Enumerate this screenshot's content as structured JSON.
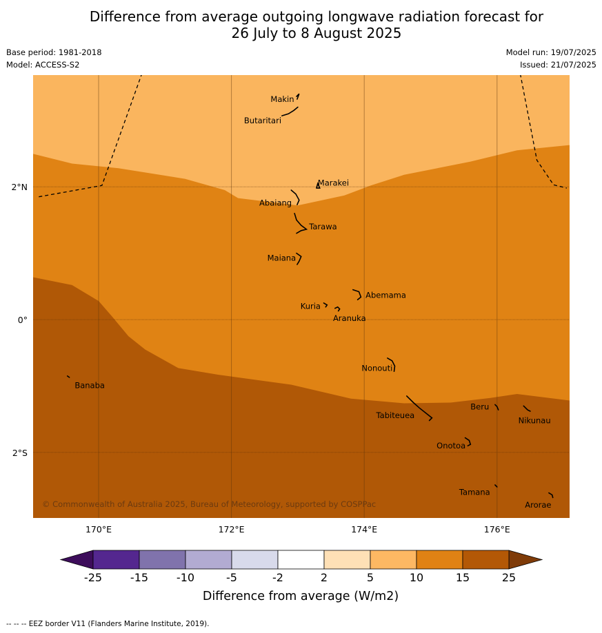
{
  "header": {
    "title_line1": "Difference from average outgoing longwave radiation forecast for",
    "title_line2": "26 July to 8 August 2025",
    "base_period": "Base period: 1981-2018",
    "model": "Model: ACCESS-S2",
    "model_run": "Model run: 19/07/2025",
    "issued": "Issued: 21/07/2025"
  },
  "map": {
    "extent": {
      "lon_min": 169.0,
      "lon_max": 177.1,
      "lat_min": -3.0,
      "lat_max": 3.7
    },
    "gridlines_lon": [
      170,
      172,
      174,
      176
    ],
    "gridlines_lat": [
      2,
      0,
      -2
    ],
    "lon_labels": [
      "170°E",
      "172°E",
      "174°E",
      "176°E"
    ],
    "lat_labels": [
      "2°N",
      "0°",
      "2°S"
    ],
    "fill_colors": {
      "band_5_10": "#fab55e",
      "band_10_15": "#e08314",
      "band_15_25": "#b05806"
    },
    "contour_10": [
      [
        169.0,
        2.5
      ],
      [
        169.6,
        2.35
      ],
      [
        170.3,
        2.28
      ],
      [
        171.3,
        2.12
      ],
      [
        171.9,
        1.95
      ],
      [
        172.1,
        1.83
      ],
      [
        173.0,
        1.72
      ],
      [
        173.7,
        1.87
      ],
      [
        174.1,
        2.02
      ],
      [
        174.6,
        2.18
      ],
      [
        175.6,
        2.38
      ],
      [
        176.3,
        2.55
      ],
      [
        177.1,
        2.63
      ]
    ],
    "contour_15": [
      [
        169.0,
        0.64
      ],
      [
        169.6,
        0.52
      ],
      [
        170.0,
        0.28
      ],
      [
        170.2,
        0.05
      ],
      [
        170.45,
        -0.25
      ],
      [
        170.7,
        -0.45
      ],
      [
        171.2,
        -0.73
      ],
      [
        171.8,
        -0.83
      ],
      [
        172.9,
        -0.98
      ],
      [
        173.8,
        -1.19
      ],
      [
        174.6,
        -1.26
      ],
      [
        175.3,
        -1.25
      ],
      [
        175.9,
        -1.18
      ],
      [
        176.3,
        -1.12
      ],
      [
        177.1,
        -1.22
      ]
    ],
    "eez_west": [
      [
        169.1,
        1.85
      ],
      [
        170.05,
        2.02
      ],
      [
        170.65,
        3.7
      ]
    ],
    "eez_east": [
      [
        176.35,
        3.7
      ],
      [
        176.6,
        2.4
      ],
      [
        176.85,
        2.03
      ],
      [
        177.05,
        1.98
      ]
    ],
    "islands": [
      {
        "name": "Makin",
        "lon": 173.0,
        "lat": 3.38,
        "label_lon": 172.59,
        "label_lat": 3.32,
        "outline": [
          [
            172.98,
            3.36
          ],
          [
            173.02,
            3.4
          ],
          [
            172.99,
            3.32
          ]
        ]
      },
      {
        "name": "Butaritari",
        "lon": 172.85,
        "lat": 3.15,
        "label_lon": 172.19,
        "label_lat": 3.0,
        "outline": [
          [
            172.76,
            3.07
          ],
          [
            172.86,
            3.1
          ],
          [
            172.94,
            3.15
          ],
          [
            173.0,
            3.2
          ]
        ]
      },
      {
        "name": "Marakei",
        "lon": 173.3,
        "lat": 2.0,
        "label_lon": 173.3,
        "label_lat": 2.06,
        "outline": [
          [
            173.28,
            1.98
          ],
          [
            173.3,
            2.05
          ],
          [
            173.33,
            1.98
          ],
          [
            173.28,
            1.98
          ]
        ]
      },
      {
        "name": "Abaiang",
        "lon": 172.95,
        "lat": 1.83,
        "label_lon": 172.42,
        "label_lat": 1.76,
        "outline": [
          [
            172.9,
            1.95
          ],
          [
            172.97,
            1.89
          ],
          [
            173.02,
            1.8
          ],
          [
            172.99,
            1.73
          ]
        ]
      },
      {
        "name": "Tarawa",
        "lon": 173.0,
        "lat": 1.4,
        "label_lon": 173.17,
        "label_lat": 1.4,
        "outline": [
          [
            172.95,
            1.6
          ],
          [
            172.98,
            1.5
          ],
          [
            173.05,
            1.42
          ],
          [
            173.13,
            1.36
          ],
          [
            173.05,
            1.34
          ],
          [
            172.98,
            1.3
          ]
        ]
      },
      {
        "name": "Maiana",
        "lon": 173.0,
        "lat": 0.95,
        "label_lon": 172.54,
        "label_lat": 0.93,
        "outline": [
          [
            172.98,
            1.0
          ],
          [
            173.05,
            0.95
          ],
          [
            173.02,
            0.88
          ],
          [
            172.99,
            0.83
          ]
        ]
      },
      {
        "name": "Abemama",
        "lon": 173.88,
        "lat": 0.4,
        "label_lon": 174.02,
        "label_lat": 0.37,
        "outline": [
          [
            173.83,
            0.45
          ],
          [
            173.92,
            0.42
          ],
          [
            173.95,
            0.34
          ],
          [
            173.9,
            0.3
          ]
        ]
      },
      {
        "name": "Kuria",
        "lon": 173.42,
        "lat": 0.22,
        "label_lon": 173.04,
        "label_lat": 0.2,
        "outline": [
          [
            173.39,
            0.25
          ],
          [
            173.44,
            0.22
          ],
          [
            173.42,
            0.19
          ]
        ]
      },
      {
        "name": "Aranuka",
        "lon": 173.6,
        "lat": 0.17,
        "label_lon": 173.53,
        "label_lat": 0.02,
        "outline": [
          [
            173.56,
            0.17
          ],
          [
            173.6,
            0.19
          ],
          [
            173.63,
            0.16
          ],
          [
            173.61,
            0.13
          ]
        ]
      },
      {
        "name": "Nonouti",
        "lon": 174.4,
        "lat": -0.65,
        "label_lon": 173.96,
        "label_lat": -0.73,
        "outline": [
          [
            174.35,
            -0.58
          ],
          [
            174.42,
            -0.62
          ],
          [
            174.46,
            -0.7
          ],
          [
            174.45,
            -0.78
          ]
        ]
      },
      {
        "name": "Tabiteuea",
        "lon": 174.85,
        "lat": -1.3,
        "label_lon": 174.18,
        "label_lat": -1.44,
        "outline": [
          [
            174.64,
            -1.15
          ],
          [
            174.74,
            -1.25
          ],
          [
            174.83,
            -1.33
          ],
          [
            174.93,
            -1.41
          ],
          [
            175.02,
            -1.48
          ],
          [
            174.98,
            -1.52
          ]
        ]
      },
      {
        "name": "Beru",
        "lon": 175.98,
        "lat": -1.33,
        "label_lon": 175.6,
        "label_lat": -1.31,
        "outline": [
          [
            175.97,
            -1.28
          ],
          [
            176.0,
            -1.31
          ],
          [
            176.02,
            -1.36
          ]
        ]
      },
      {
        "name": "Nikunau",
        "lon": 176.45,
        "lat": -1.35,
        "label_lon": 176.32,
        "label_lat": -1.52,
        "outline": [
          [
            176.4,
            -1.3
          ],
          [
            176.46,
            -1.36
          ],
          [
            176.5,
            -1.38
          ]
        ]
      },
      {
        "name": "Onotoa",
        "lon": 175.58,
        "lat": -1.85,
        "label_lon": 175.09,
        "label_lat": -1.9,
        "outline": [
          [
            175.52,
            -1.78
          ],
          [
            175.58,
            -1.82
          ],
          [
            175.6,
            -1.88
          ],
          [
            175.56,
            -1.9
          ]
        ]
      },
      {
        "name": "Tamana",
        "lon": 175.98,
        "lat": -2.5,
        "label_lon": 175.43,
        "label_lat": -2.6,
        "outline": [
          [
            175.97,
            -2.49
          ],
          [
            176.0,
            -2.52
          ]
        ]
      },
      {
        "name": "Arorae",
        "lon": 176.82,
        "lat": -2.64,
        "label_lon": 176.42,
        "label_lat": -2.79,
        "outline": [
          [
            176.78,
            -2.61
          ],
          [
            176.83,
            -2.64
          ],
          [
            176.84,
            -2.68
          ]
        ]
      },
      {
        "name": "Banaba",
        "lon": 169.55,
        "lat": -0.86,
        "label_lon": 169.64,
        "label_lat": -0.99,
        "outline": [
          [
            169.53,
            -0.85
          ],
          [
            169.56,
            -0.87
          ]
        ]
      }
    ],
    "copyright": "© Commonwealth of Australia 2025, Bureau of Meteorology, supported by COSPPac"
  },
  "colorbar": {
    "ticks": [
      "-25",
      "-15",
      "-10",
      "-5",
      "-2",
      "2",
      "5",
      "10",
      "15",
      "25"
    ],
    "low_extend_color": "#3d0d5b",
    "colors": [
      "#54278f",
      "#8073ac",
      "#b2abd2",
      "#d8daeb",
      "#ffffff",
      "#fee0b6",
      "#fdb863",
      "#e08214",
      "#b35806"
    ],
    "high_extend_color": "#7f3b08",
    "title": "Difference from average (W/m2)"
  },
  "footnote": "--  --  -- EEZ border V11 (Flanders Marine Institute, 2019)."
}
